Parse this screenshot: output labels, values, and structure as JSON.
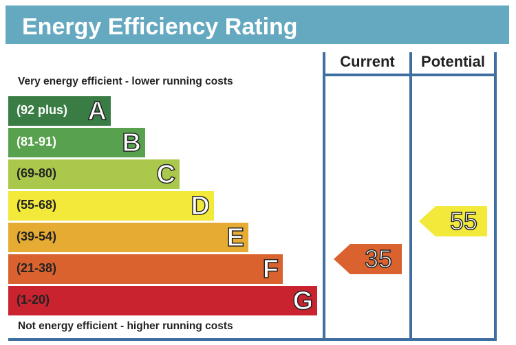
{
  "title": "Energy Efficiency Rating",
  "columns": {
    "current": "Current",
    "potential": "Potential"
  },
  "top_note": "Very energy efficient - lower running costs",
  "bottom_note": "Not energy efficient - higher running costs",
  "chart_data": {
    "type": "bar",
    "categories": [
      "A",
      "B",
      "C",
      "D",
      "E",
      "F",
      "G"
    ],
    "bands": [
      {
        "letter": "A",
        "range": "(92 plus)",
        "color": "#3a7d44",
        "text_color": "#ffffff"
      },
      {
        "letter": "B",
        "range": "(81-91)",
        "color": "#58a14f",
        "text_color": "#ffffff"
      },
      {
        "letter": "C",
        "range": "(69-80)",
        "color": "#a9c84c",
        "text_color": "#222222"
      },
      {
        "letter": "D",
        "range": "(55-68)",
        "color": "#f2e93a",
        "text_color": "#222222"
      },
      {
        "letter": "E",
        "range": "(39-54)",
        "color": "#e6ab33",
        "text_color": "#222222"
      },
      {
        "letter": "F",
        "range": "(21-38)",
        "color": "#d9622e",
        "text_color": "#222222"
      },
      {
        "letter": "G",
        "range": "(1-20)",
        "color": "#c8232f",
        "text_color": "#222222"
      }
    ],
    "current": {
      "value": 35,
      "band": "F",
      "color": "#d9622e"
    },
    "potential": {
      "value": 55,
      "band": "D",
      "color": "#f2e93a"
    }
  }
}
